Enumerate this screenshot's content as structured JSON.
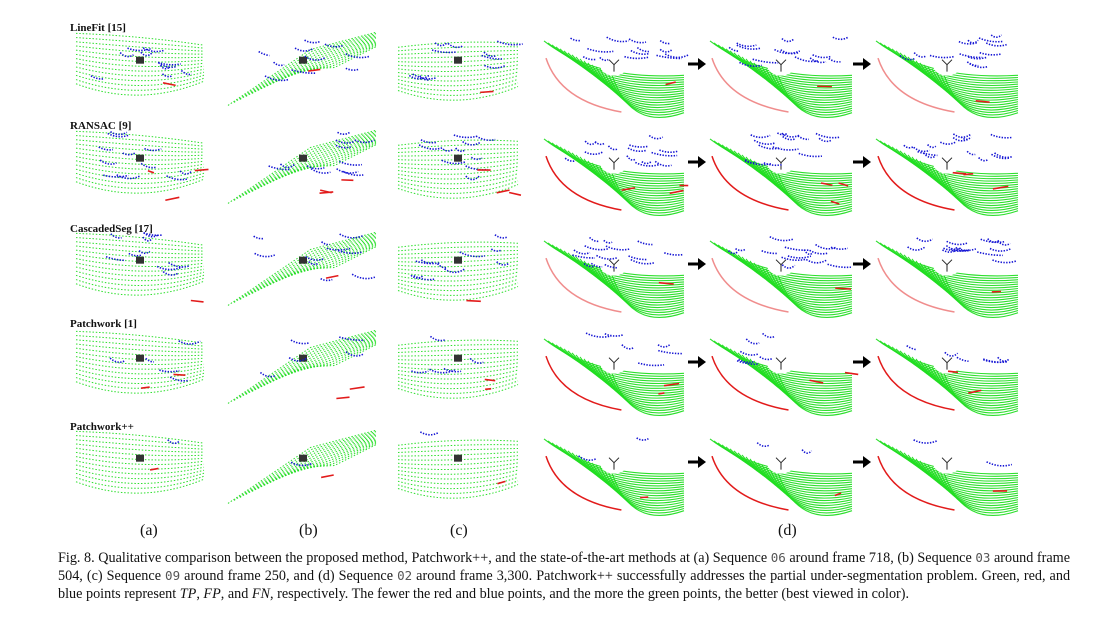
{
  "figure": {
    "rows": [
      "LineFit [15]",
      "RANSAC [9]",
      "CascadedSeg [17]",
      "Patchwork [1]",
      "Patchwork++"
    ],
    "subfigure_labels": [
      "(a)",
      "(b)",
      "(c)",
      "(d)"
    ],
    "point_colors": {
      "tp": "#22dd22",
      "fp": "#e21b1b",
      "fn": "#1515d4"
    }
  },
  "caption": {
    "fig_num": "Fig. 8.",
    "part1": "Qualitative comparison between the proposed method, Patchwork++, and the state-of-the-art methods at (a) Sequence",
    "seq_a": "06",
    "part2": "around frame 718, (b) Sequence",
    "seq_b": "03",
    "part3": "around frame 504, (c) Sequence",
    "seq_c": "09",
    "part4": "around frame 250, and (d) Sequence",
    "seq_d": "02",
    "part5": "around frame 3,300. Patchwork++ successfully addresses the partial under-segmentation problem. Green, red, and blue points represent",
    "tp": "TP",
    "part6": ",",
    "fp": "FP",
    "part7": ", and",
    "fn": "FN",
    "part8": ", respectively. The fewer the red and blue points, and the more the green points, the better (best viewed in color)."
  }
}
